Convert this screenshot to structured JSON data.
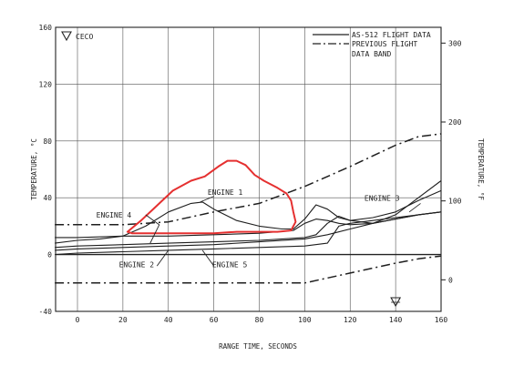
{
  "chart_data": {
    "type": "line",
    "xlabel": "RANGE TIME, SECONDS",
    "ylabel": "TEMPERATURE, °C",
    "y2label": "TEMPERATURE, °F",
    "xlim": [
      -10,
      160
    ],
    "ylim": [
      -40,
      160
    ],
    "y2lim": [
      -40,
      320
    ],
    "x_ticks": [
      0,
      20,
      40,
      60,
      80,
      100,
      120,
      140,
      160
    ],
    "x_tick_labels": [
      "0",
      "20",
      "40",
      "60",
      "80",
      "100",
      "120",
      "140",
      "160"
    ],
    "y_ticks": [
      -40,
      0,
      40,
      80,
      120,
      160
    ],
    "y_tick_labels": [
      "-40",
      "0",
      "40",
      "80",
      "120",
      "160"
    ],
    "y2_ticks": [
      0,
      100,
      200,
      300
    ],
    "y2_tick_labels": [
      "0",
      "100",
      "200",
      "300"
    ],
    "grid": true,
    "legend_position": "top-right",
    "legend": [
      {
        "label": "AS-512 FLIGHT DATA",
        "style": "solid"
      },
      {
        "label": "PREVIOUS FLIGHT DATA BAND",
        "style": "dash-dot"
      }
    ],
    "markers": [
      {
        "label": "CECO",
        "x": 140,
        "symbol": "inverted-triangle"
      }
    ],
    "series": [
      {
        "name": "ENGINE 1",
        "style": "solid",
        "x": [
          -10,
          0,
          10,
          20,
          30,
          40,
          50,
          55,
          60,
          70,
          80,
          90,
          95,
          100,
          105,
          110,
          115,
          120,
          130,
          140,
          150,
          160
        ],
        "y": [
          8,
          10,
          11,
          13,
          20,
          30,
          36,
          37,
          32,
          24,
          20,
          18,
          18,
          25,
          35,
          32,
          26,
          24,
          26,
          30,
          38,
          45
        ]
      },
      {
        "name": "ENGINE 3",
        "style": "solid",
        "x": [
          -10,
          0,
          20,
          40,
          60,
          80,
          95,
          100,
          105,
          110,
          115,
          120,
          130,
          140,
          150,
          160
        ],
        "y": [
          12,
          12,
          13,
          13,
          14,
          15,
          17,
          22,
          25,
          24,
          22,
          21,
          22,
          28,
          40,
          52
        ]
      },
      {
        "name": "ENGINE 4",
        "style": "solid",
        "x": [
          -10,
          0,
          20,
          40,
          60,
          80,
          100,
          105,
          110,
          115,
          120,
          130,
          140,
          150,
          160
        ],
        "y": [
          5,
          6,
          7,
          8,
          9,
          10,
          12,
          14,
          22,
          27,
          24,
          22,
          25,
          28,
          30
        ]
      },
      {
        "name": "ENGINE 2",
        "style": "solid",
        "x": [
          -10,
          0,
          20,
          40,
          60,
          80,
          100,
          110,
          120,
          130,
          140,
          150,
          160
        ],
        "y": [
          3,
          4,
          5,
          6,
          7,
          9,
          11,
          14,
          18,
          22,
          25,
          28,
          30
        ]
      },
      {
        "name": "ENGINE 5",
        "style": "solid",
        "x": [
          -10,
          0,
          20,
          40,
          60,
          80,
          100,
          110,
          115,
          120,
          130,
          140,
          150,
          160
        ],
        "y": [
          0,
          1,
          2,
          3,
          4,
          5,
          6,
          8,
          20,
          22,
          24,
          26,
          28,
          30
        ]
      },
      {
        "name": "",
        "style": "dash-dot",
        "x": [
          -10,
          0,
          20,
          40,
          60,
          80,
          100,
          120,
          140,
          150,
          160
        ],
        "y": [
          21,
          21,
          21,
          23,
          30,
          36,
          48,
          62,
          77,
          83,
          85
        ]
      },
      {
        "name": "",
        "style": "dash-dot",
        "x": [
          -10,
          0,
          20,
          40,
          60,
          80,
          100,
          120,
          140,
          150,
          160
        ],
        "y": [
          -20,
          -20,
          -20,
          -20,
          -20,
          -20,
          -20,
          -13,
          -6,
          -3,
          -1
        ]
      }
    ],
    "annotations": [
      {
        "text": "ENGINE 1",
        "x": 65,
        "y": 42
      },
      {
        "text": "ENGINE 3",
        "x": 134,
        "y": 38
      },
      {
        "text": "ENGINE 4",
        "x": 16,
        "y": 26
      },
      {
        "text": "ENGINE 2",
        "x": 26,
        "y": -9
      },
      {
        "text": "ENGINE 5",
        "x": 67,
        "y": -9
      }
    ],
    "hand_drawn_loop": {
      "color": "#e53030",
      "x": [
        22,
        28,
        34,
        42,
        50,
        56,
        62,
        66,
        70,
        74,
        78,
        82,
        88,
        92,
        94,
        95,
        96,
        94,
        88,
        80,
        70,
        60,
        50,
        40,
        30,
        24,
        22
      ],
      "y": [
        16,
        24,
        33,
        45,
        52,
        55,
        62,
        66,
        66,
        63,
        56,
        52,
        47,
        43,
        38,
        30,
        23,
        17,
        16,
        16,
        16,
        15,
        15,
        15,
        15,
        15,
        16
      ]
    }
  }
}
